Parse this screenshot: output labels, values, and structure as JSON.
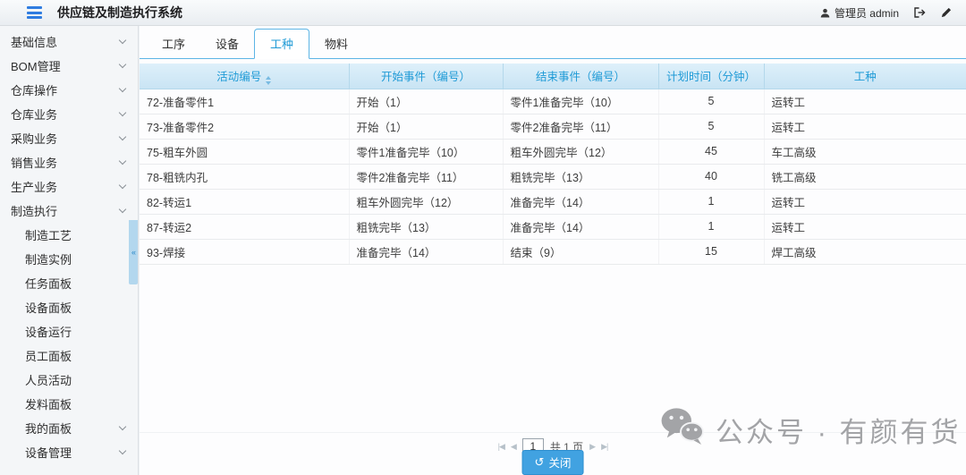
{
  "topbar": {
    "title": "供应链及制造执行系统",
    "user": "管理员 admin"
  },
  "sidebar": {
    "collapse_icon": "«",
    "items": [
      {
        "label": "基础信息",
        "indent": false,
        "chevron": true
      },
      {
        "label": "BOM管理",
        "indent": false,
        "chevron": true
      },
      {
        "label": "仓库操作",
        "indent": false,
        "chevron": true
      },
      {
        "label": "仓库业务",
        "indent": false,
        "chevron": true
      },
      {
        "label": "采购业务",
        "indent": false,
        "chevron": true
      },
      {
        "label": "销售业务",
        "indent": false,
        "chevron": true
      },
      {
        "label": "生产业务",
        "indent": false,
        "chevron": true
      },
      {
        "label": "制造执行",
        "indent": false,
        "chevron": true
      },
      {
        "label": "制造工艺",
        "indent": true,
        "chevron": false
      },
      {
        "label": "制造实例",
        "indent": true,
        "chevron": false
      },
      {
        "label": "任务面板",
        "indent": true,
        "chevron": false
      },
      {
        "label": "设备面板",
        "indent": true,
        "chevron": false
      },
      {
        "label": "设备运行",
        "indent": true,
        "chevron": false
      },
      {
        "label": "员工面板",
        "indent": true,
        "chevron": false
      },
      {
        "label": "人员活动",
        "indent": true,
        "chevron": false
      },
      {
        "label": "发料面板",
        "indent": true,
        "chevron": false
      },
      {
        "label": "我的面板",
        "indent": true,
        "chevron": true
      },
      {
        "label": "设备管理",
        "indent": true,
        "chevron": true
      }
    ]
  },
  "tabs": [
    {
      "label": "工序",
      "active": false
    },
    {
      "label": "设备",
      "active": false
    },
    {
      "label": "工种",
      "active": true
    },
    {
      "label": "物料",
      "active": false
    }
  ],
  "table": {
    "columns": [
      "活动编号",
      "开始事件（编号）",
      "结束事件（编号）",
      "计划时间（分钟）",
      "工种"
    ],
    "rows": [
      [
        "72-准备零件1",
        "开始（1）",
        "零件1准备完毕（10）",
        "5",
        "运转工"
      ],
      [
        "73-准备零件2",
        "开始（1）",
        "零件2准备完毕（11）",
        "5",
        "运转工"
      ],
      [
        "75-粗车外圆",
        "零件1准备完毕（10）",
        "粗车外圆完毕（12）",
        "45",
        "车工高级"
      ],
      [
        "78-粗铣内孔",
        "零件2准备完毕（11）",
        "粗铣完毕（13）",
        "40",
        "铣工高级"
      ],
      [
        "82-转运1",
        "粗车外圆完毕（12）",
        "准备完毕（14）",
        "1",
        "运转工"
      ],
      [
        "87-转运2",
        "粗铣完毕（13）",
        "准备完毕（14）",
        "1",
        "运转工"
      ],
      [
        "93-焊接",
        "准备完毕（14）",
        "结束（9）",
        "15",
        "焊工高级"
      ]
    ]
  },
  "pagination": {
    "first_icon": "|◀",
    "prev_icon": "◀",
    "page": "1",
    "total_label": "共 1 页",
    "next_icon": "▶",
    "last_icon": "▶|"
  },
  "footer": {
    "close_label": "关闭",
    "undo_icon": "↺"
  },
  "watermark": {
    "text": "公众号 · 有颜有货"
  },
  "colors": {
    "accent_blue": "#1e9ad6",
    "header_bg": "#cfe6f4",
    "button_blue": "#41a2e1",
    "burger_blue": "#2f7ce0"
  }
}
